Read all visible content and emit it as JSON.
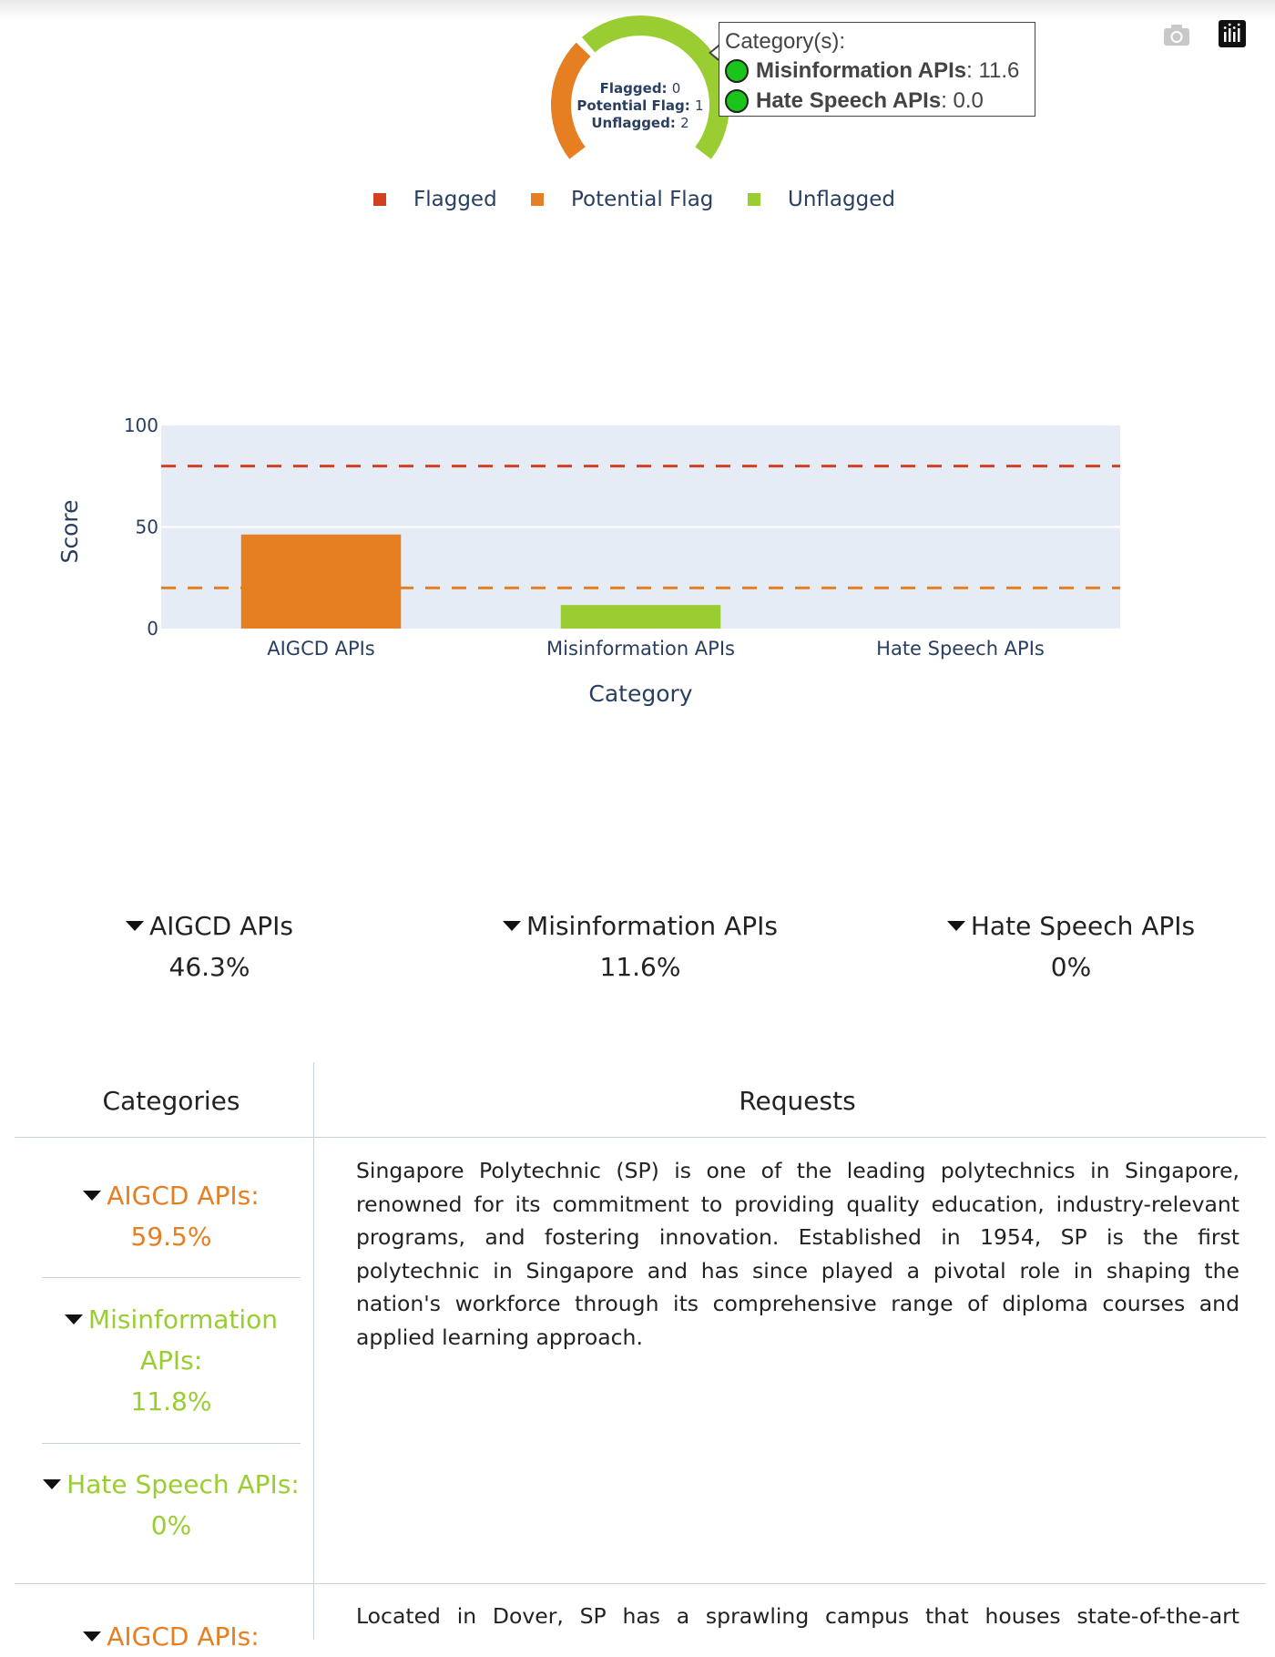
{
  "donut": {
    "segments": [
      {
        "name": "Flagged",
        "count": 0,
        "color": "#d3401f"
      },
      {
        "name": "Potential Flag",
        "count": 1,
        "color": "#e67e22"
      },
      {
        "name": "Unflagged",
        "count": 2,
        "color": "#9acd32"
      }
    ],
    "labels": [
      {
        "key": "Flagged:",
        "value": "0"
      },
      {
        "key": "Potential Flag:",
        "value": "1"
      },
      {
        "key": "Unflagged:",
        "value": "2"
      }
    ]
  },
  "tooltip": {
    "title": "Category(s):",
    "rows": [
      {
        "name": "Misinformation APIs",
        "value": ": 11.6"
      },
      {
        "name": "Hate Speech APIs",
        "value": ": 0.0"
      }
    ]
  },
  "modebar": {
    "icons": [
      "camera-icon",
      "plotly-logo-icon"
    ]
  },
  "legend": [
    {
      "label": "Flagged",
      "color": "#d3401f"
    },
    {
      "label": "Potential Flag",
      "color": "#e67e22"
    },
    {
      "label": "Unflagged",
      "color": "#9acd32"
    }
  ],
  "chart_data": {
    "type": "bar",
    "categories": [
      "AIGCD APIs",
      "Misinformation APIs",
      "Hate Speech APIs"
    ],
    "values": [
      46.3,
      11.6,
      0.0
    ],
    "bar_colors": [
      "#e67e22",
      "#9acd32",
      "#9acd32"
    ],
    "xlabel": "Category",
    "ylabel": "Score",
    "ylim": [
      0,
      100
    ],
    "yticks": [
      0,
      50,
      100
    ],
    "thresholds": [
      {
        "value": 80,
        "color": "#d3401f",
        "style": "dashed"
      },
      {
        "value": 20,
        "color": "#e67e22",
        "style": "dashed"
      }
    ],
    "plot_background": "#e5ecf6",
    "grid": true
  },
  "kpis": [
    {
      "title": "AIGCD APIs",
      "value": "46.3%"
    },
    {
      "title": "Misinformation APIs",
      "value": "11.6%"
    },
    {
      "title": "Hate Speech APIs",
      "value": "0%"
    }
  ],
  "table": {
    "headers": {
      "categories": "Categories",
      "requests": "Requests"
    },
    "rows": [
      {
        "categories": [
          {
            "lines": [
              "AIGCD APIs:",
              "59.5%"
            ],
            "color": "orange"
          },
          {
            "lines": [
              "Misinformation",
              "APIs:",
              "11.8%"
            ],
            "color": "green"
          },
          {
            "lines": [
              "Hate Speech APIs:",
              "0%"
            ],
            "color": "green"
          }
        ],
        "request": "Singapore Polytechnic (SP) is one of the leading polytechnics in Singapore, renowned for its commitment to providing quality education, industry-relevant programs, and fostering innovation. Established in 1954, SP is the first polytechnic in Singapore and has since played a pivotal role in shaping the nation's workforce through its comprehensive range of diploma courses and applied learning approach."
      },
      {
        "categories": [
          {
            "lines": [
              "AIGCD APIs:"
            ],
            "color": "orange"
          }
        ],
        "request": "Located in Dover, SP has a sprawling campus that houses state-of-the-art facilities,"
      }
    ]
  },
  "colors": {
    "orange": "#e67e22",
    "green": "#9acd32",
    "red": "#d3401f",
    "text": "#2a3f5f"
  }
}
